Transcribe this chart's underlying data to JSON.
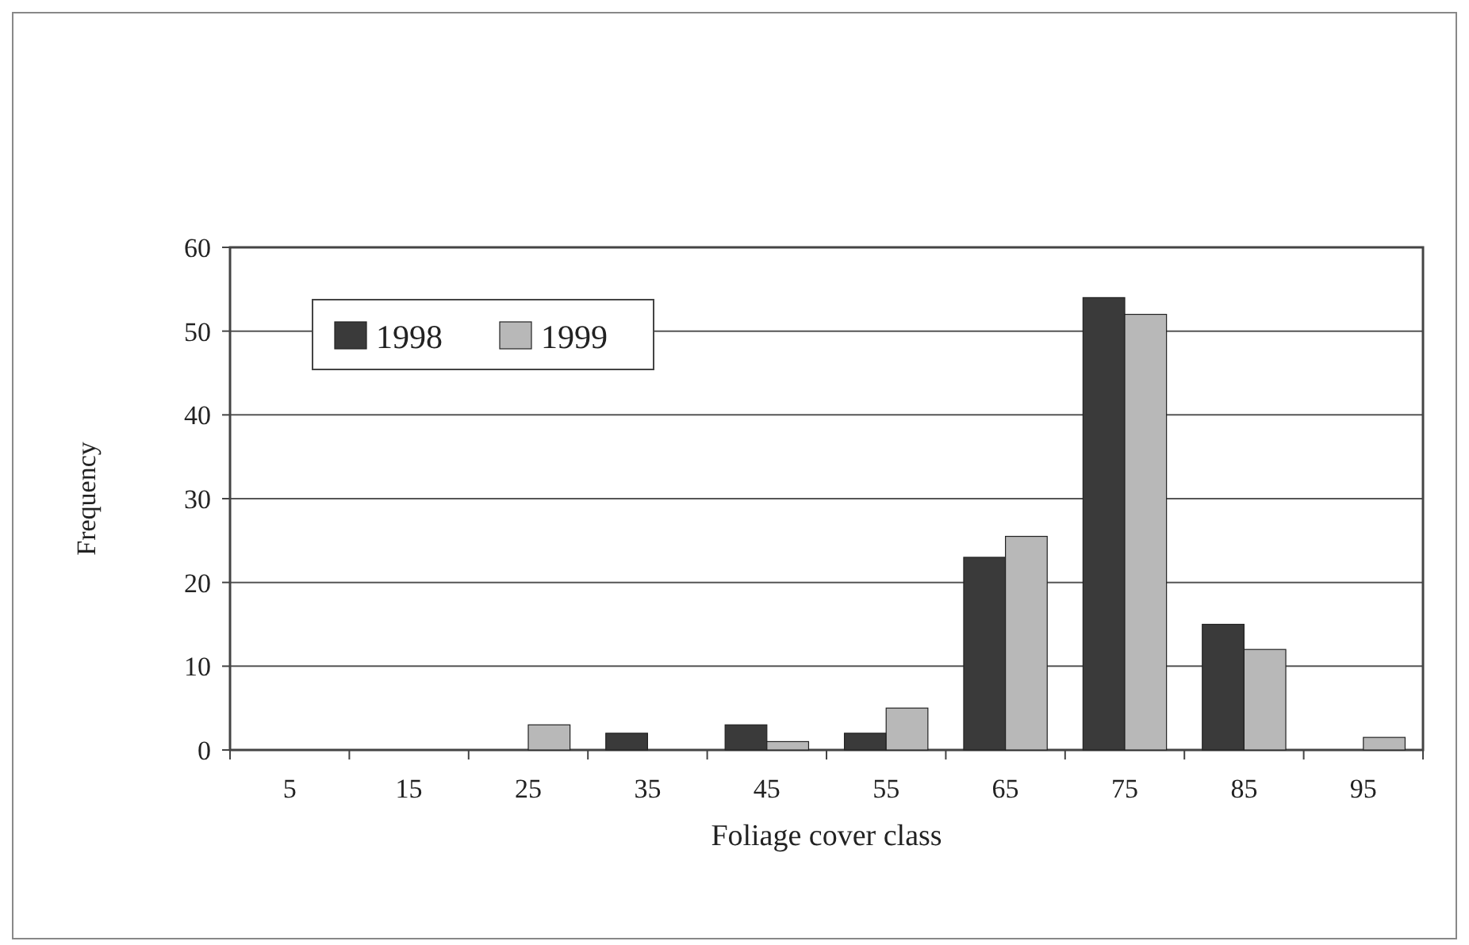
{
  "chart_data": {
    "type": "bar",
    "xlabel": "Foliage cover class",
    "ylabel": "Frequency",
    "categories": [
      "5",
      "15",
      "25",
      "35",
      "45",
      "55",
      "65",
      "75",
      "85",
      "95"
    ],
    "series": [
      {
        "name": "1998",
        "color": "#3a3a3a",
        "values": [
          0,
          0,
          0,
          2,
          3,
          2,
          23,
          54,
          15,
          0
        ]
      },
      {
        "name": "1999",
        "color": "#b8b8b8",
        "values": [
          0,
          0,
          3,
          0,
          1,
          5,
          25.5,
          52,
          12,
          1.5
        ]
      }
    ],
    "ylim": [
      0,
      60
    ],
    "yticks": [
      0,
      10,
      20,
      30,
      40,
      50,
      60
    ],
    "grid": "y",
    "legend": "top left"
  }
}
